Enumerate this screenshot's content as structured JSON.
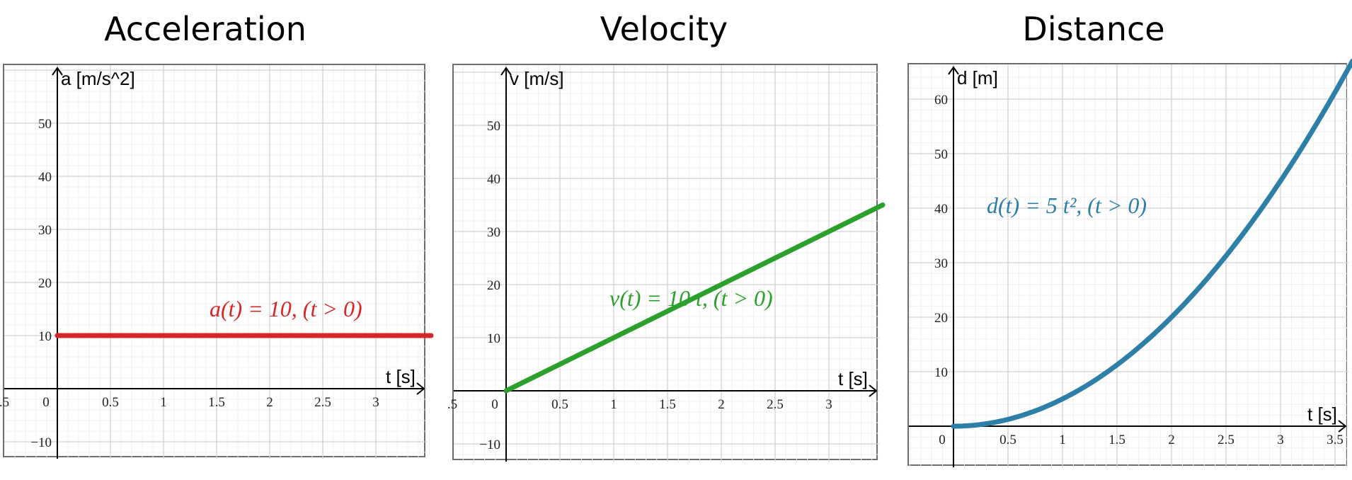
{
  "titles": {
    "acceleration": "Acceleration",
    "velocity": "Velocity",
    "distance": "Distance"
  },
  "chart_data": [
    {
      "type": "line",
      "title": "Acceleration",
      "xlabel": "t [s]",
      "ylabel": "a [m/s^2]",
      "equation": "a(t) = 10,    (t > 0)",
      "color": "#d62728",
      "x": [
        0,
        0.5,
        1,
        1.5,
        2,
        2.5,
        3,
        3.5
      ],
      "values": [
        10,
        10,
        10,
        10,
        10,
        10,
        10,
        10
      ],
      "xlim": [
        -0.5,
        3.5
      ],
      "ylim": [
        -13,
        60
      ],
      "xticks": [
        ".5",
        "0",
        "0.5",
        "1",
        "1.5",
        "2",
        "2.5",
        "3"
      ],
      "yticks": [
        "50",
        "40",
        "30",
        "20",
        "10",
        "−10"
      ],
      "grid": true
    },
    {
      "type": "line",
      "title": "Velocity",
      "xlabel": "t [s]",
      "ylabel": "v [m/s]",
      "equation": "v(t) = 10 t,    (t > 0)",
      "color": "#2ca02c",
      "x": [
        0,
        0.5,
        1,
        1.5,
        2,
        2.5,
        3,
        3.5
      ],
      "values": [
        0,
        5,
        10,
        15,
        20,
        25,
        30,
        35
      ],
      "xlim": [
        -0.5,
        3.5
      ],
      "ylim": [
        -13,
        60
      ],
      "xticks": [
        ".5",
        "0",
        "0.5",
        "1",
        "1.5",
        "2",
        "2.5",
        "3"
      ],
      "yticks": [
        "50",
        "40",
        "30",
        "20",
        "10",
        "−10"
      ],
      "grid": true
    },
    {
      "type": "line",
      "title": "Distance",
      "xlabel": "t [s]",
      "ylabel": "d [m]",
      "equation": "d(t) = 5 t²,    (t > 0)",
      "color": "#2e7fa8",
      "x": [
        0,
        0.5,
        1,
        1.5,
        2,
        2.5,
        3,
        3.5
      ],
      "values": [
        0,
        1.25,
        5,
        11.25,
        20,
        31.25,
        45,
        61.25
      ],
      "xlim": [
        -0.4,
        3.6
      ],
      "ylim": [
        -7,
        68
      ],
      "xticks": [
        "0",
        "0.5",
        "1",
        "1.5",
        "2",
        "2.5",
        "3",
        "3.5"
      ],
      "yticks": [
        "60",
        "50",
        "40",
        "30",
        "20",
        "10"
      ],
      "grid": true
    }
  ]
}
